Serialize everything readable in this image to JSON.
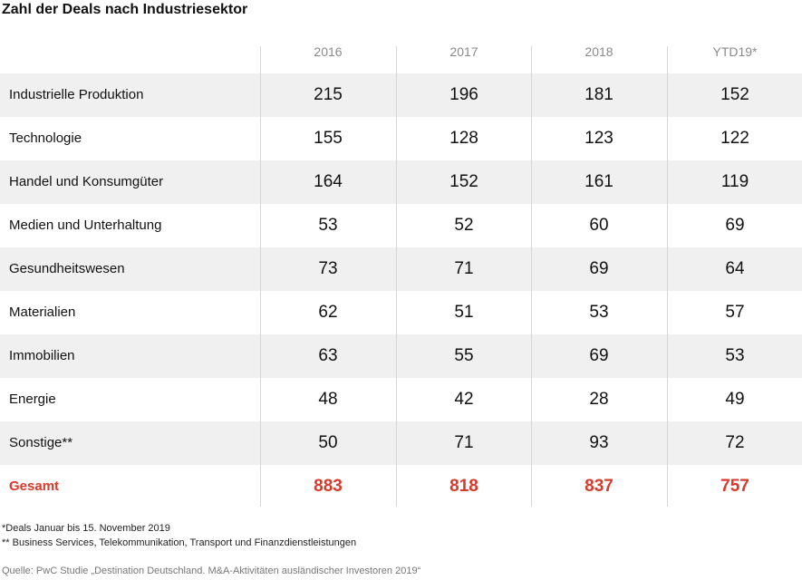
{
  "chart_data": {
    "type": "table",
    "title": "Zahl der Deals nach Industriesektor",
    "columns": [
      "2016",
      "2017",
      "2018",
      "YTD19*"
    ],
    "rows": [
      {
        "label": "Industrielle Produktion",
        "values": [
          215,
          196,
          181,
          152
        ]
      },
      {
        "label": "Technologie",
        "values": [
          155,
          128,
          123,
          122
        ]
      },
      {
        "label": "Handel und Konsumgüter",
        "values": [
          164,
          152,
          161,
          119
        ]
      },
      {
        "label": "Medien und Unterhaltung",
        "values": [
          53,
          52,
          60,
          69
        ]
      },
      {
        "label": "Gesundheitswesen",
        "values": [
          73,
          71,
          69,
          64
        ]
      },
      {
        "label": "Materialien",
        "values": [
          62,
          51,
          53,
          57
        ]
      },
      {
        "label": "Immobilien",
        "values": [
          63,
          55,
          69,
          53
        ]
      },
      {
        "label": "Energie",
        "values": [
          48,
          42,
          28,
          49
        ]
      },
      {
        "label": "Sonstige**",
        "values": [
          50,
          71,
          93,
          72
        ]
      }
    ],
    "total": {
      "label": "Gesamt",
      "values": [
        883,
        818,
        837,
        757
      ]
    },
    "footnotes": [
      "*Deals Januar bis 15. November 2019",
      "** Business Services, Telekommunikation, Transport und Finanzdienstleistungen"
    ],
    "source": "Quelle: PwC Studie „Destination Deutschland. M&A-Aktivitäten ausländischer Investoren 2019“",
    "colors": {
      "total": "#d93a2b",
      "shade": "#f0f0f0",
      "header": "#8a8a8a"
    }
  }
}
